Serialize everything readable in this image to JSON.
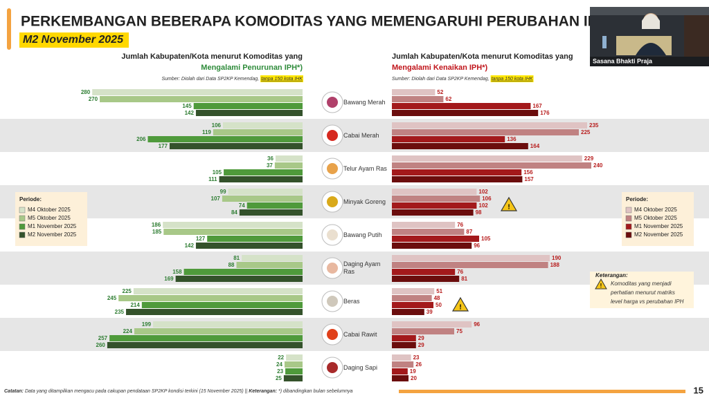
{
  "header": {
    "title": "PERKEMBANGAN BEBERAPA KOMODITAS YANG MEMENGARUHI PERUBAHAN IPH",
    "subtitle": "M2 November 2025"
  },
  "chart_data": [
    {
      "type": "bar",
      "orientation": "horizontal",
      "direction": "left",
      "heading": "Jumlah Kabupaten/Kota menurut Komoditas yang",
      "subheading": "Mengalami Penurunan IPH*)",
      "source": "Sumber: Diolah dari Data SP2KP Kemendag,",
      "source_note": "tanpa 150 kota IHK",
      "legend_title": "Periode:",
      "label_color": "#2e7d32",
      "categories": [
        "Bawang Merah",
        "Cabai Merah",
        "Telur Ayam Ras",
        "Minyak Goreng",
        "Bawang Putih",
        "Daging Ayam Ras",
        "Beras",
        "Cabai Rawit",
        "Daging Sapi"
      ],
      "series": [
        {
          "name": "M4 Oktober 2025",
          "color": "#d5e2c8",
          "values": [
            280,
            106,
            36,
            99,
            186,
            81,
            225,
            199,
            22
          ]
        },
        {
          "name": "M5 Oktober 2025",
          "color": "#a8c888",
          "values": [
            270,
            119,
            37,
            107,
            185,
            88,
            245,
            224,
            24
          ]
        },
        {
          "name": "M1 November 2025",
          "color": "#4f9a3b",
          "values": [
            145,
            206,
            105,
            74,
            127,
            158,
            214,
            257,
            23
          ]
        },
        {
          "name": "M2 November 2025",
          "color": "#34522b",
          "values": [
            142,
            177,
            111,
            84,
            142,
            169,
            235,
            260,
            25
          ]
        }
      ]
    },
    {
      "type": "bar",
      "orientation": "horizontal",
      "direction": "right",
      "heading": "Jumlah Kabupaten/Kota menurut Komoditas yang",
      "subheading": "Mengalami Kenaikan IPH*)",
      "source": "Sumber: Diolah dari Data SP2KP Kemendag,",
      "source_note": "tanpa 150 kota IHK",
      "legend_title": "Periode:",
      "label_color": "#b71c1c",
      "series": [
        {
          "name": "M4 Oktober 2025",
          "color": "#dfc3c3",
          "values": [
            52,
            235,
            229,
            102,
            76,
            190,
            51,
            96,
            23
          ]
        },
        {
          "name": "M5 Oktober 2025",
          "color": "#c08282",
          "values": [
            62,
            225,
            240,
            106,
            87,
            188,
            48,
            75,
            26
          ]
        },
        {
          "name": "M1 November 2025",
          "color": "#a3191b",
          "values": [
            167,
            136,
            156,
            102,
            105,
            76,
            50,
            29,
            19
          ]
        },
        {
          "name": "M2 November 2025",
          "color": "#6b0d0d",
          "values": [
            176,
            164,
            157,
            98,
            96,
            81,
            39,
            29,
            20
          ]
        }
      ]
    }
  ],
  "note": {
    "title": "Keterangan:",
    "lines": [
      "Komoditas yang menjadi",
      "perhatian menurut matriks",
      "level harga vs perubahan IPH"
    ]
  },
  "footer": {
    "note_label": "Catatan:",
    "note": "Data yang ditampilkan mengacu pada cakupan pendataan SP2KP kondisi terkini (15 November 2025) ||",
    "remark_label": "Keterangan:",
    "remark": "*) dibandingkan bulan sebelumnya",
    "page": "15"
  },
  "video": {
    "label": "Sasana Bhakti Praja"
  }
}
